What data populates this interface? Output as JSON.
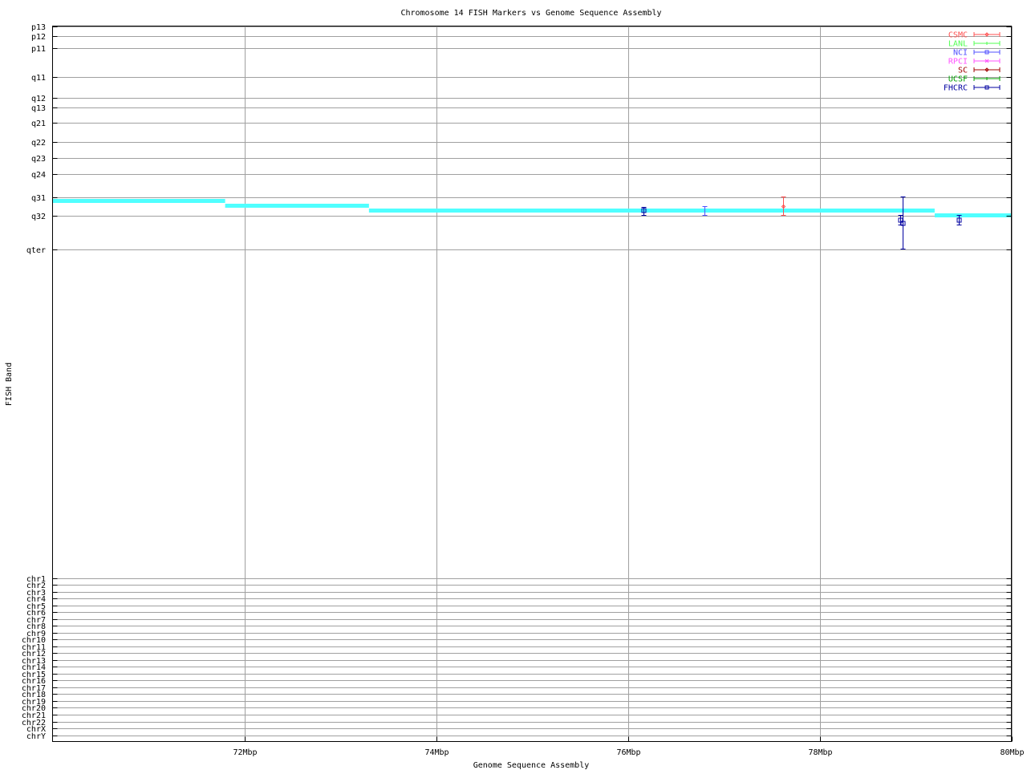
{
  "chart_data": {
    "type": "scatter",
    "title": "Chromosome 14 FISH Markers vs Genome Sequence Assembly",
    "xlabel": "Genome Sequence Assembly",
    "ylabel": "FISH Band",
    "xlim": [
      70,
      80
    ],
    "ylim": [
      0,
      892
    ],
    "y_inverted": true,
    "grid": true,
    "legend_placement": "top-right",
    "x_ticks": [
      {
        "value": 72,
        "label": "72Mbp"
      },
      {
        "value": 74,
        "label": "74Mbp"
      },
      {
        "value": 76,
        "label": "76Mbp"
      },
      {
        "value": 78,
        "label": "78Mbp"
      },
      {
        "value": 80,
        "label": "80Mbp"
      }
    ],
    "y_ticks": [
      {
        "value": 0,
        "label": "p13"
      },
      {
        "value": 12,
        "label": "p12"
      },
      {
        "value": 27,
        "label": "p11"
      },
      {
        "value": 63,
        "label": "q11"
      },
      {
        "value": 89,
        "label": "q12"
      },
      {
        "value": 101,
        "label": "q13"
      },
      {
        "value": 120,
        "label": "q21"
      },
      {
        "value": 144,
        "label": "q22"
      },
      {
        "value": 164,
        "label": "q23"
      },
      {
        "value": 184,
        "label": "q24"
      },
      {
        "value": 213,
        "label": "q31"
      },
      {
        "value": 236,
        "label": "q32"
      },
      {
        "value": 278,
        "label": "qter"
      },
      {
        "value": 688,
        "label": "chr1"
      },
      {
        "value": 696.5,
        "label": "chr2"
      },
      {
        "value": 705,
        "label": "chr3"
      },
      {
        "value": 713.6,
        "label": "chr4"
      },
      {
        "value": 722.1,
        "label": "chr5"
      },
      {
        "value": 730.6,
        "label": "chr6"
      },
      {
        "value": 739.1,
        "label": "chr7"
      },
      {
        "value": 747.7,
        "label": "chr8"
      },
      {
        "value": 756.2,
        "label": "chr9"
      },
      {
        "value": 764.7,
        "label": "chr10"
      },
      {
        "value": 773.2,
        "label": "chr11"
      },
      {
        "value": 781.7,
        "label": "chr12"
      },
      {
        "value": 790.3,
        "label": "chr13"
      },
      {
        "value": 798.8,
        "label": "chr14"
      },
      {
        "value": 807.3,
        "label": "chr15"
      },
      {
        "value": 815.8,
        "label": "chr16"
      },
      {
        "value": 824.4,
        "label": "chr17"
      },
      {
        "value": 832.9,
        "label": "chr18"
      },
      {
        "value": 841.4,
        "label": "chr19"
      },
      {
        "value": 849.9,
        "label": "chr20"
      },
      {
        "value": 858.4,
        "label": "chr21"
      },
      {
        "value": 867,
        "label": "chr22"
      },
      {
        "value": 875.5,
        "label": "chrX"
      },
      {
        "value": 884,
        "label": "chrY"
      }
    ],
    "legend": [
      {
        "name": "CSMC",
        "color": "#ff5050",
        "marker": "diamond"
      },
      {
        "name": "LANL",
        "color": "#50ff50",
        "marker": "plus"
      },
      {
        "name": "NCI",
        "color": "#5050ff",
        "marker": "square"
      },
      {
        "name": "RPCI",
        "color": "#ff50ff",
        "marker": "cross"
      },
      {
        "name": "SC",
        "color": "#a00000",
        "marker": "diamond"
      },
      {
        "name": "UCSF",
        "color": "#00a000",
        "marker": "plus"
      },
      {
        "name": "FHCRC",
        "color": "#0000a0",
        "marker": "square"
      }
    ],
    "assembly_line": {
      "color": "#50ffff",
      "segments": [
        {
          "x": [
            70.0,
            71.8
          ],
          "y": 218
        },
        {
          "x": [
            71.8,
            73.3
          ],
          "y": 224
        },
        {
          "x": [
            73.3,
            79.2
          ],
          "y": 230
        },
        {
          "x": [
            79.2,
            80.0
          ],
          "y": 236
        }
      ]
    },
    "points": [
      {
        "series": "FHCRC",
        "x": 76.16,
        "y": 230,
        "ylow": 226,
        "yhigh": 236
      },
      {
        "series": "NCI",
        "x": 76.8,
        "y": 230,
        "ylow": 225,
        "yhigh": 236,
        "no_marker": true
      },
      {
        "series": "CSMC",
        "x": 77.62,
        "y": 225,
        "ylow": 213,
        "yhigh": 236
      },
      {
        "series": "FHCRC",
        "x": 78.84,
        "y": 242,
        "ylow": 236,
        "yhigh": 248
      },
      {
        "series": "FHCRC",
        "x": 78.87,
        "y": 246,
        "ylow": 213,
        "yhigh": 278
      },
      {
        "series": "FHCRC",
        "x": 79.45,
        "y": 242,
        "ylow": 236,
        "yhigh": 248
      }
    ]
  }
}
